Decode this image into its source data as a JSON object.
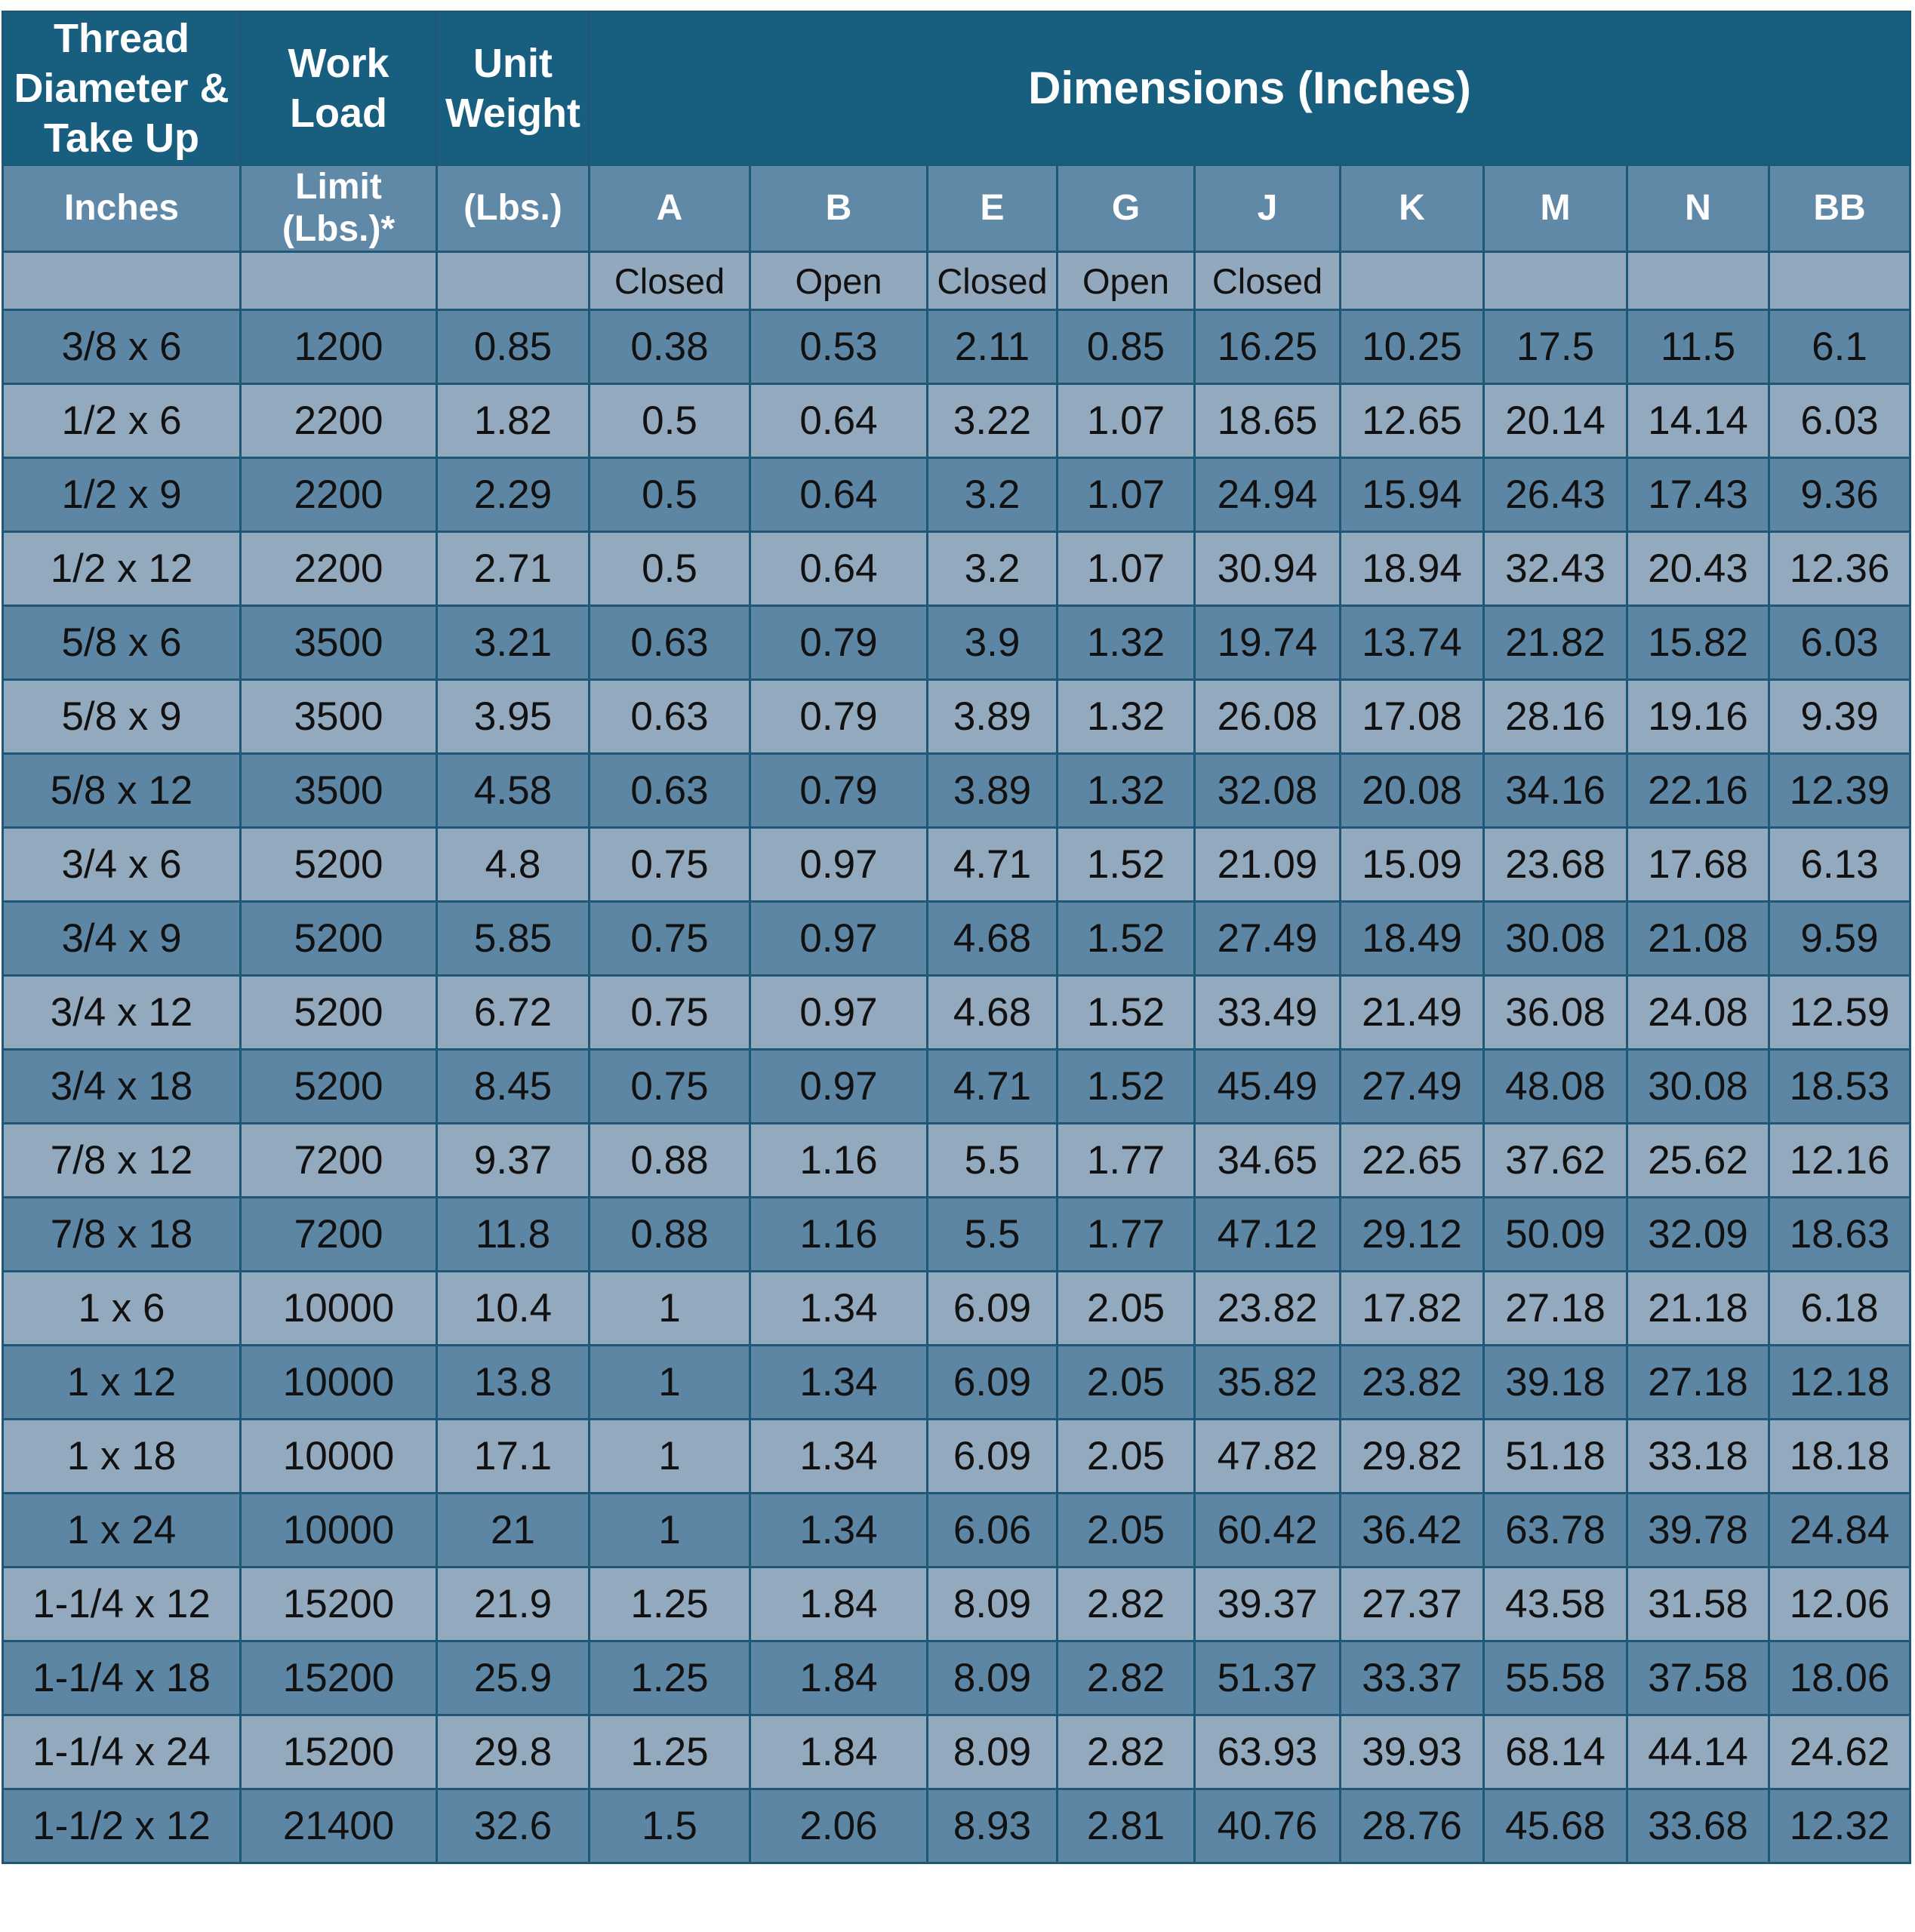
{
  "header": {
    "thread": [
      "Thread",
      "Diameter &",
      "Take Up"
    ],
    "work_load": [
      "Work",
      "Load"
    ],
    "unit_weight": [
      "Unit",
      "Weight"
    ],
    "dimensions": "Dimensions (Inches)"
  },
  "subheader": {
    "inches": "Inches",
    "limit": [
      "Limit",
      "(Lbs.)*"
    ],
    "lbs": "(Lbs.)",
    "columns": [
      "A",
      "B",
      "E",
      "G",
      "J",
      "K",
      "M",
      "N",
      "BB"
    ]
  },
  "states": [
    "",
    "",
    "",
    "Closed",
    "Open",
    "Closed",
    "Open",
    "Closed",
    "",
    "",
    "",
    ""
  ],
  "rows": [
    [
      "3/8 x 6",
      "1200",
      "0.85",
      "0.38",
      "0.53",
      "2.11",
      "0.85",
      "16.25",
      "10.25",
      "17.5",
      "11.5",
      "6.1"
    ],
    [
      "1/2 x 6",
      "2200",
      "1.82",
      "0.5",
      "0.64",
      "3.22",
      "1.07",
      "18.65",
      "12.65",
      "20.14",
      "14.14",
      "6.03"
    ],
    [
      "1/2 x 9",
      "2200",
      "2.29",
      "0.5",
      "0.64",
      "3.2",
      "1.07",
      "24.94",
      "15.94",
      "26.43",
      "17.43",
      "9.36"
    ],
    [
      "1/2 x 12",
      "2200",
      "2.71",
      "0.5",
      "0.64",
      "3.2",
      "1.07",
      "30.94",
      "18.94",
      "32.43",
      "20.43",
      "12.36"
    ],
    [
      "5/8 x 6",
      "3500",
      "3.21",
      "0.63",
      "0.79",
      "3.9",
      "1.32",
      "19.74",
      "13.74",
      "21.82",
      "15.82",
      "6.03"
    ],
    [
      "5/8 x 9",
      "3500",
      "3.95",
      "0.63",
      "0.79",
      "3.89",
      "1.32",
      "26.08",
      "17.08",
      "28.16",
      "19.16",
      "9.39"
    ],
    [
      "5/8 x 12",
      "3500",
      "4.58",
      "0.63",
      "0.79",
      "3.89",
      "1.32",
      "32.08",
      "20.08",
      "34.16",
      "22.16",
      "12.39"
    ],
    [
      "3/4 x 6",
      "5200",
      "4.8",
      "0.75",
      "0.97",
      "4.71",
      "1.52",
      "21.09",
      "15.09",
      "23.68",
      "17.68",
      "6.13"
    ],
    [
      "3/4 x 9",
      "5200",
      "5.85",
      "0.75",
      "0.97",
      "4.68",
      "1.52",
      "27.49",
      "18.49",
      "30.08",
      "21.08",
      "9.59"
    ],
    [
      "3/4 x 12",
      "5200",
      "6.72",
      "0.75",
      "0.97",
      "4.68",
      "1.52",
      "33.49",
      "21.49",
      "36.08",
      "24.08",
      "12.59"
    ],
    [
      "3/4 x 18",
      "5200",
      "8.45",
      "0.75",
      "0.97",
      "4.71",
      "1.52",
      "45.49",
      "27.49",
      "48.08",
      "30.08",
      "18.53"
    ],
    [
      "7/8 x 12",
      "7200",
      "9.37",
      "0.88",
      "1.16",
      "5.5",
      "1.77",
      "34.65",
      "22.65",
      "37.62",
      "25.62",
      "12.16"
    ],
    [
      "7/8 x 18",
      "7200",
      "11.8",
      "0.88",
      "1.16",
      "5.5",
      "1.77",
      "47.12",
      "29.12",
      "50.09",
      "32.09",
      "18.63"
    ],
    [
      "1 x 6",
      "10000",
      "10.4",
      "1",
      "1.34",
      "6.09",
      "2.05",
      "23.82",
      "17.82",
      "27.18",
      "21.18",
      "6.18"
    ],
    [
      "1 x 12",
      "10000",
      "13.8",
      "1",
      "1.34",
      "6.09",
      "2.05",
      "35.82",
      "23.82",
      "39.18",
      "27.18",
      "12.18"
    ],
    [
      "1 x 18",
      "10000",
      "17.1",
      "1",
      "1.34",
      "6.09",
      "2.05",
      "47.82",
      "29.82",
      "51.18",
      "33.18",
      "18.18"
    ],
    [
      "1 x 24",
      "10000",
      "21",
      "1",
      "1.34",
      "6.06",
      "2.05",
      "60.42",
      "36.42",
      "63.78",
      "39.78",
      "24.84"
    ],
    [
      "1-1/4 x 12",
      "15200",
      "21.9",
      "1.25",
      "1.84",
      "8.09",
      "2.82",
      "39.37",
      "27.37",
      "43.58",
      "31.58",
      "12.06"
    ],
    [
      "1-1/4 x 18",
      "15200",
      "25.9",
      "1.25",
      "1.84",
      "8.09",
      "2.82",
      "51.37",
      "33.37",
      "55.58",
      "37.58",
      "18.06"
    ],
    [
      "1-1/4 x 24",
      "15200",
      "29.8",
      "1.25",
      "1.84",
      "8.09",
      "2.82",
      "63.93",
      "39.93",
      "68.14",
      "44.14",
      "24.62"
    ],
    [
      "1-1/2 x 12",
      "21400",
      "32.6",
      "1.5",
      "2.06",
      "8.93",
      "2.81",
      "40.76",
      "28.76",
      "45.68",
      "33.68",
      "12.32"
    ]
  ],
  "colors": {
    "title_bg": "#175e7f",
    "subheader_bg": "#6088a7",
    "row_dark": "#5d85a4",
    "row_light": "#93a9be",
    "grid_line": "#1e5876"
  }
}
